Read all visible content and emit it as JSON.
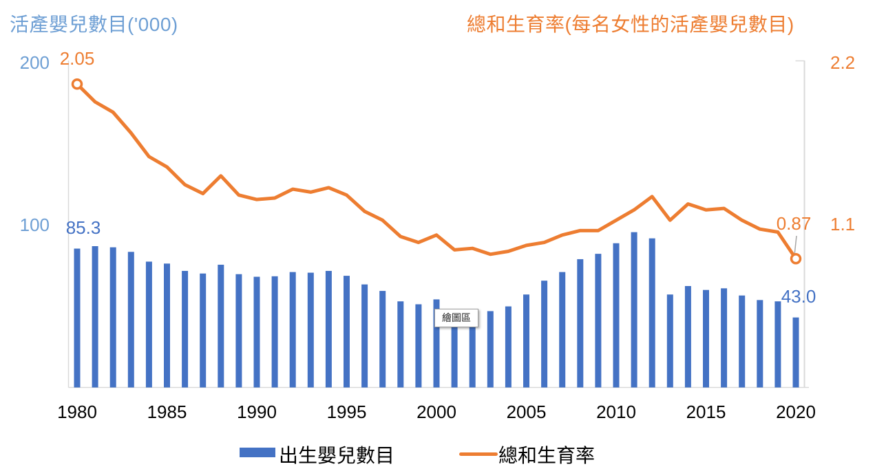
{
  "titles": {
    "left_axis_title": "活產嬰兒數目('000)",
    "right_axis_title": "總和生育率(每名女性的活產嬰兒數目)"
  },
  "colors": {
    "bar": "#4472C4",
    "line": "#ED7D31",
    "axis_text_blue": "#6E9FD4",
    "data_label_blue": "#4472C4",
    "axis_text_orange": "#ED7D31",
    "gridline": "#D9D9D9",
    "leader_line": "#A6A6A6",
    "x_label": "#000000"
  },
  "tooltip": {
    "text": "繪圖區"
  },
  "chart_data": {
    "type": "combo",
    "subtype": "bar+line-dual-axis",
    "x": [
      1980,
      1981,
      1982,
      1983,
      1984,
      1985,
      1986,
      1987,
      1988,
      1989,
      1990,
      1991,
      1992,
      1993,
      1994,
      1995,
      1996,
      1997,
      1998,
      1999,
      2000,
      2001,
      2002,
      2003,
      2004,
      2005,
      2006,
      2007,
      2008,
      2009,
      2010,
      2011,
      2012,
      2013,
      2014,
      2015,
      2016,
      2017,
      2018,
      2019,
      2020
    ],
    "x_tick_labels": [
      "1980",
      "1985",
      "1990",
      "1995",
      "2000",
      "2005",
      "2010",
      "2015",
      "2020"
    ],
    "left_axis": {
      "title": "活產嬰兒數目('000)",
      "tick_labels": [
        "200",
        "100"
      ],
      "tick_values": [
        200,
        100
      ],
      "ylim": [
        0,
        200
      ]
    },
    "right_axis": {
      "title": "總和生育率(每名女性的活產嬰兒數目)",
      "tick_labels": [
        "2.2",
        "1.1"
      ],
      "tick_values": [
        2.2,
        1.1
      ],
      "ylim": [
        0,
        2.2
      ]
    },
    "series": [
      {
        "name": "出生嬰兒數目",
        "type": "bar",
        "axis": "left",
        "color": "#4472C4",
        "values": [
          85.3,
          86.8,
          86.1,
          83.3,
          77.3,
          76.1,
          71.6,
          70.0,
          75.4,
          69.6,
          68.0,
          68.3,
          70.9,
          70.5,
          71.6,
          68.6,
          63.3,
          59.3,
          52.9,
          51.1,
          54.1,
          48.2,
          48.2,
          46.9,
          49.8,
          57.1,
          65.6,
          70.9,
          78.8,
          82.1,
          88.6,
          95.4,
          91.6,
          57.1,
          62.3,
          59.9,
          60.9,
          56.5,
          53.7,
          52.9,
          43.0
        ]
      },
      {
        "name": "總和生育率",
        "type": "line",
        "axis": "right",
        "color": "#ED7D31",
        "markers": "first-and-last-only",
        "values": [
          2.05,
          1.93,
          1.86,
          1.72,
          1.56,
          1.49,
          1.37,
          1.31,
          1.43,
          1.3,
          1.27,
          1.28,
          1.34,
          1.32,
          1.35,
          1.3,
          1.19,
          1.13,
          1.02,
          0.98,
          1.03,
          0.93,
          0.94,
          0.9,
          0.92,
          0.96,
          0.98,
          1.03,
          1.06,
          1.06,
          1.13,
          1.2,
          1.29,
          1.13,
          1.24,
          1.2,
          1.21,
          1.13,
          1.07,
          1.05,
          0.87
        ]
      }
    ],
    "data_labels": {
      "bar_first": "85.3",
      "bar_last": "43.0",
      "line_first": "2.05",
      "line_last": "0.87"
    },
    "legend": {
      "position": "bottom-center",
      "items": [
        {
          "label": "出生嬰兒數目",
          "swatch": "bar"
        },
        {
          "label": "總和生育率",
          "swatch": "line"
        }
      ]
    },
    "grid": "left-and-right-vertical-only"
  }
}
